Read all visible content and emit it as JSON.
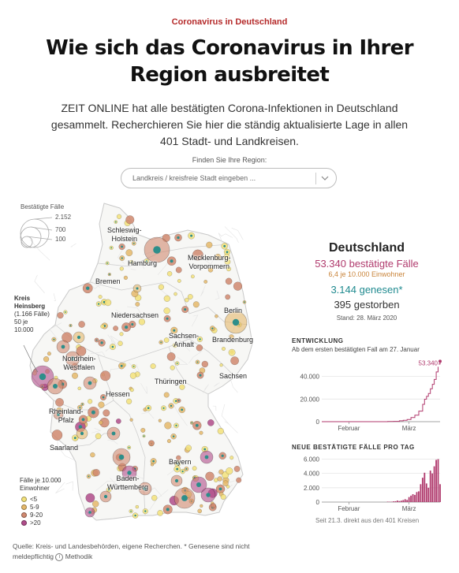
{
  "kicker": "Coronavirus in Deutschland",
  "headline_line1": "Wie sich das Coronavirus in Ihrer",
  "headline_line2": "Region ausbreitet",
  "lead_line1": "ZEIT ONLINE hat alle bestätigten Corona-Infektionen in Deutschland",
  "lead_line2": "gesammelt. Recherchieren Sie hier die ständig aktualisierte Lage in allen",
  "lead_line3": "401 Stadt- und Landkreisen.",
  "finder": {
    "label": "Finden Sie Ihre Region:",
    "placeholder": "Landkreis / kreisfreie Stadt eingeben ..."
  },
  "legend": {
    "size_title": "Bestätigte Fälle",
    "size_values": [
      "2.152",
      "700",
      "100"
    ],
    "highlight_name": "Kreis Heinsberg",
    "highlight_line1": "(1.166 Fälle)",
    "highlight_line2": "50 je",
    "highlight_line3": "10.000",
    "rate_title_line1": "Fälle je 10.000",
    "rate_title_line2": "Einwohner",
    "rate_items": [
      {
        "label": "<5",
        "color": "#f3e27a"
      },
      {
        "label": "5-9",
        "color": "#e5b86a"
      },
      {
        "label": "9-20",
        "color": "#d0886f"
      },
      {
        "label": ">20",
        "color": "#b04c8a"
      }
    ]
  },
  "map_labels": {
    "schleswig_holstein_1": "Schleswig-",
    "schleswig_holstein_2": "Holstein",
    "hamburg": "Hamburg",
    "mv_1": "Mecklenburg-",
    "mv_2": "Vorpommern",
    "bremen": "Bremen",
    "niedersachsen": "Niedersachsen",
    "berlin": "Berlin",
    "brandenburg": "Brandenburg",
    "sachsen_anhalt_1": "Sachsen-",
    "sachsen_anhalt_2": "Anhalt",
    "nrw_1": "Nordrhein-",
    "nrw_2": "Westfalen",
    "sachsen": "Sachsen",
    "thueringen": "Thüringen",
    "hessen": "Hessen",
    "rlp_1": "Rheinland-",
    "rlp_2": "Pfalz",
    "saarland": "Saarland",
    "bayern": "Bayern",
    "bw_1": "Baden-",
    "bw_2": "Württemberg"
  },
  "colors": {
    "cases": "#b03a6d",
    "per_capita": "#c9843a",
    "recovered": "#1f8a8f",
    "bars": "#b03a6d"
  },
  "germany": {
    "title": "Deutschland",
    "cases": "53.340 bestätigte Fälle",
    "per_capita": "6,4 je 10.000 Einwohner",
    "recovered": "3.144 genesen*",
    "deaths": "395 gestorben",
    "stand": "Stand: 28. März 2020"
  },
  "development": {
    "title": "ENTWICKLUNG",
    "subtitle": "Ab dem ersten bestätigten Fall am 27. Januar",
    "last_label": "53.340"
  },
  "new_cases": {
    "title": "NEUE BESTÄTIGTE FÄLLE PRO TAG",
    "footnote": "Seit 21.3. direkt aus den 401 Kreisen"
  },
  "chart_data": [
    {
      "type": "line",
      "title": "ENTWICKLUNG",
      "subtitle": "Ab dem ersten bestätigten Fall am 27. Januar",
      "x_tick_labels": [
        "Februar",
        "März"
      ],
      "y_tick_labels": [
        "0",
        "20.000",
        "40.000"
      ],
      "ylim": [
        0,
        55000
      ],
      "x_range": [
        "2020-01-27",
        "2020-03-28"
      ],
      "points": [
        [
          "2020-01-27",
          1
        ],
        [
          "2020-02-10",
          14
        ],
        [
          "2020-02-25",
          18
        ],
        [
          "2020-03-01",
          130
        ],
        [
          "2020-03-04",
          262
        ],
        [
          "2020-03-07",
          795
        ],
        [
          "2020-03-09",
          1224
        ],
        [
          "2020-03-11",
          1908
        ],
        [
          "2020-03-13",
          3675
        ],
        [
          "2020-03-15",
          5813
        ],
        [
          "2020-03-17",
          9352
        ],
        [
          "2020-03-19",
          15320
        ],
        [
          "2020-03-20",
          19848
        ],
        [
          "2020-03-21",
          22364
        ],
        [
          "2020-03-22",
          24873
        ],
        [
          "2020-03-23",
          29056
        ],
        [
          "2020-03-24",
          32991
        ],
        [
          "2020-03-25",
          37323
        ],
        [
          "2020-03-26",
          43938
        ],
        [
          "2020-03-27",
          50871
        ],
        [
          "2020-03-28",
          53340
        ]
      ],
      "grid": true,
      "last_value_label": "53.340"
    },
    {
      "type": "bar",
      "title": "NEUE BESTÄTIGTE FÄLLE PRO TAG",
      "x_tick_labels": [
        "Februar",
        "März"
      ],
      "y_tick_labels": [
        "0",
        "2.000",
        "4.000",
        "6.000"
      ],
      "ylim": [
        0,
        6500
      ],
      "x_range": [
        "2020-01-27",
        "2020-03-28"
      ],
      "dates": [
        "2020-03-01",
        "2020-03-02",
        "2020-03-03",
        "2020-03-04",
        "2020-03-05",
        "2020-03-06",
        "2020-03-07",
        "2020-03-08",
        "2020-03-09",
        "2020-03-10",
        "2020-03-11",
        "2020-03-12",
        "2020-03-13",
        "2020-03-14",
        "2020-03-15",
        "2020-03-16",
        "2020-03-17",
        "2020-03-18",
        "2020-03-19",
        "2020-03-20",
        "2020-03-21",
        "2020-03-22",
        "2020-03-23",
        "2020-03-24",
        "2020-03-25",
        "2020-03-26",
        "2020-03-27",
        "2020-03-28"
      ],
      "values": [
        60,
        40,
        50,
        100,
        120,
        210,
        140,
        200,
        280,
        400,
        300,
        700,
        900,
        1100,
        1000,
        1400,
        1500,
        2500,
        3400,
        4100,
        2600,
        2000,
        4400,
        4000,
        5000,
        5900,
        6000,
        2500
      ],
      "grid": true,
      "footnote": "Seit 21.3. direkt aus den 401 Kreisen"
    }
  ],
  "source_text": "Quelle: Kreis- und Landesbehörden, eigene Recherchen. * Genesene sind nicht meldepflichtig",
  "methodik_label": "Methodik"
}
